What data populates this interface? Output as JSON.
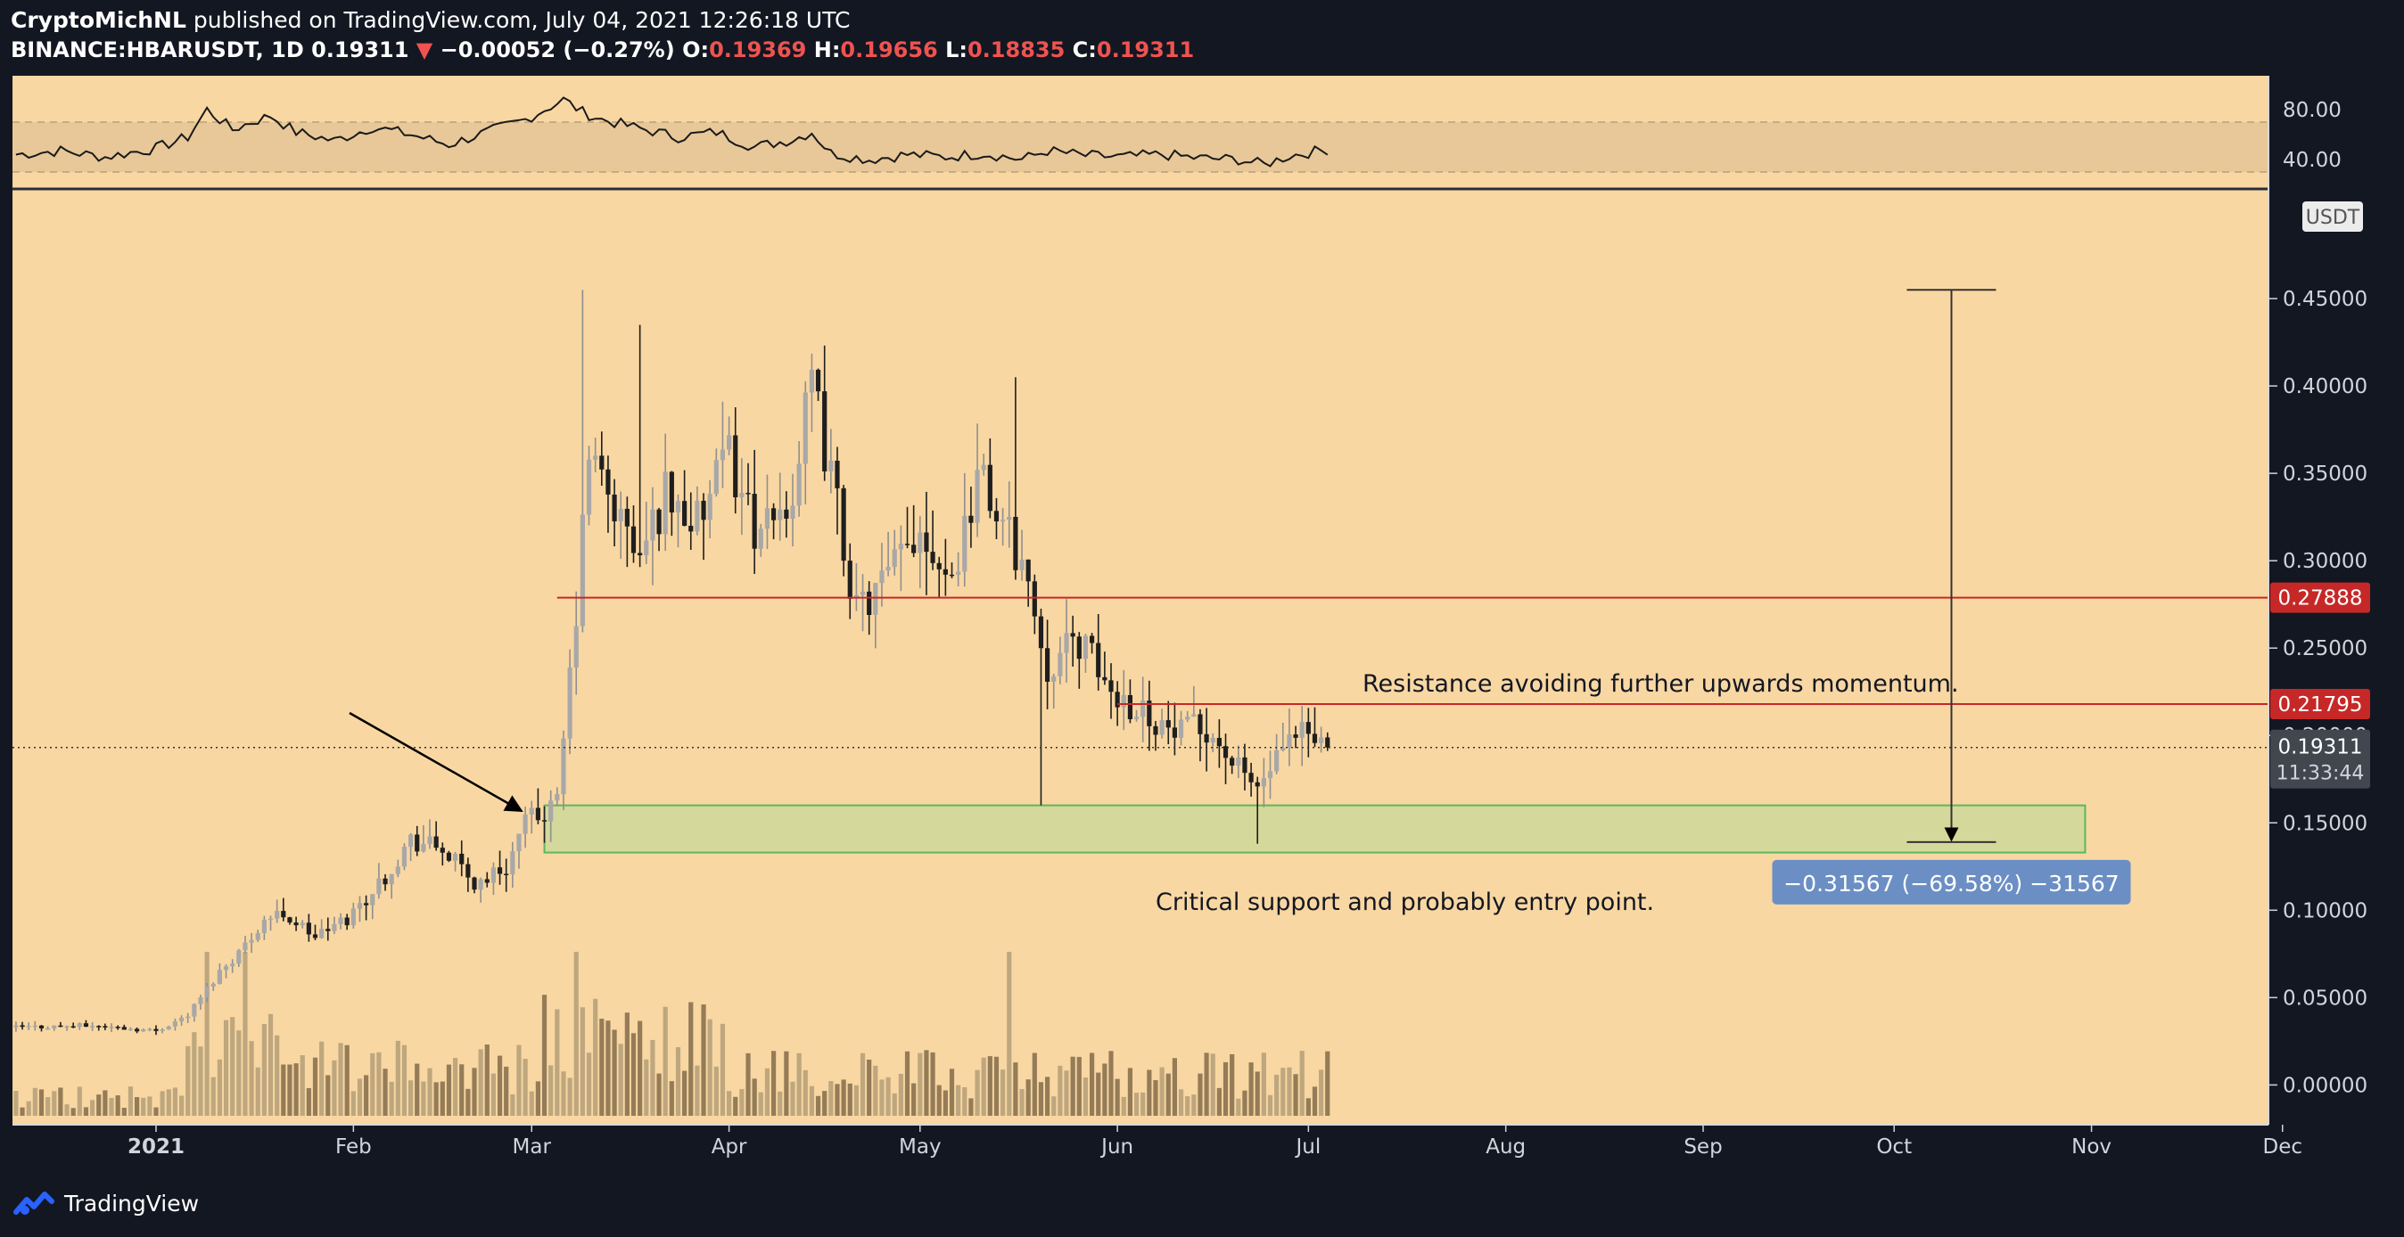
{
  "header": {
    "author": "CryptoMichNL",
    "published": "published on TradingView.com, July 04, 2021 12:26:18 UTC",
    "symbol": "BINANCE:HBARUSDT, 1D",
    "last": "0.19311",
    "change_arrow": "▼",
    "change": "−0.00052 (−0.27%)",
    "o_label": "O:",
    "o_value": "0.19369",
    "h_label": "H:",
    "h_value": "0.19656",
    "l_label": "L:",
    "l_value": "0.18835",
    "c_label": "C:",
    "c_value": "0.19311"
  },
  "footer": {
    "brand": "TradingView",
    "logo_icon": "tradingview-logo-icon"
  },
  "colors": {
    "background": "#131722",
    "panel": "#f9d7a2",
    "up_candle": "#a8a8a8",
    "down_candle": "#1e1e1e",
    "resistance": "#c62828",
    "support_zone": "#d4d89a",
    "measure_box": "#6b8fc4",
    "price_label": "#42464f"
  },
  "chart_data": {
    "type": "candlestick",
    "symbol": "BINANCE:HBARUSDT",
    "timeframe": "1D",
    "currency_label": "USDT",
    "ylim": [
      -0.01,
      0.5
    ],
    "y_ticks": [
      "0.45000",
      "0.40000",
      "0.35000",
      "0.30000",
      "0.25000",
      "0.20000",
      "0.15000",
      "0.10000",
      "0.05000",
      "0.00000"
    ],
    "y_tick_values": [
      0.45,
      0.4,
      0.35,
      0.3,
      0.25,
      0.2,
      0.15,
      0.1,
      0.05,
      0.0
    ],
    "x_ticks": [
      "2021",
      "Feb",
      "Mar",
      "Apr",
      "May",
      "Jun",
      "Jul",
      "Aug",
      "Sep",
      "Oct",
      "Nov",
      "Dec"
    ],
    "x_tick_days": [
      0,
      31,
      59,
      90,
      120,
      151,
      181,
      212,
      243,
      273,
      304,
      334
    ],
    "price_checkpoints": {
      "days": [
        -22,
        -10,
        0,
        5,
        10,
        14,
        17,
        20,
        25,
        30,
        35,
        40,
        45,
        50,
        55,
        58,
        63,
        66,
        68,
        72,
        76,
        80,
        85,
        90,
        95,
        100,
        103,
        107,
        110,
        115,
        120,
        125,
        129,
        133,
        136,
        140,
        145,
        150,
        155,
        160,
        165,
        170,
        173,
        176,
        180,
        184
      ],
      "close": [
        0.033,
        0.034,
        0.031,
        0.04,
        0.065,
        0.08,
        0.095,
        0.098,
        0.085,
        0.095,
        0.115,
        0.14,
        0.135,
        0.115,
        0.125,
        0.15,
        0.16,
        0.27,
        0.36,
        0.33,
        0.3,
        0.34,
        0.32,
        0.36,
        0.31,
        0.34,
        0.4,
        0.33,
        0.27,
        0.29,
        0.32,
        0.29,
        0.35,
        0.32,
        0.3,
        0.24,
        0.255,
        0.225,
        0.215,
        0.2,
        0.205,
        0.18,
        0.17,
        0.185,
        0.2,
        0.193
      ]
    },
    "last_price": 0.19311,
    "last_price_label": "0.19311",
    "countdown": "11:33:44",
    "resistance_levels": [
      {
        "value": 0.27888,
        "label": "0.27888",
        "from_day": 63
      },
      {
        "value": 0.21795,
        "label": "0.21795",
        "from_day": 151
      }
    ],
    "support_zone": {
      "low": 0.133,
      "high": 0.16,
      "from_day": 61,
      "to_day": 303
    },
    "measure": {
      "from": 0.455,
      "to": 0.139,
      "day": 282,
      "label": "−0.31567 (−69.58%) −31567"
    },
    "annotations": [
      {
        "text": "Resistance avoiding further upwards momentum."
      },
      {
        "text": "Critical support and probably entry point."
      }
    ],
    "rsi": {
      "ticks": [
        "80.00",
        "40.00"
      ],
      "tick_values": [
        80,
        40
      ],
      "band": [
        30,
        70
      ],
      "ylim": [
        20,
        100
      ],
      "days": [
        -22,
        -15,
        -8,
        0,
        5,
        8,
        12,
        15,
        18,
        22,
        28,
        34,
        40,
        46,
        52,
        58,
        61,
        64,
        67,
        70,
        75,
        82,
        88,
        94,
        100,
        103,
        106,
        112,
        118,
        124,
        130,
        136,
        140,
        146,
        152,
        158,
        164,
        170,
        174,
        178,
        184
      ],
      "values": [
        44,
        47,
        42,
        49,
        58,
        80,
        64,
        70,
        75,
        62,
        55,
        66,
        60,
        52,
        62,
        72,
        80,
        88,
        78,
        72,
        66,
        58,
        62,
        50,
        56,
        62,
        45,
        40,
        44,
        42,
        45,
        40,
        47,
        43,
        42,
        44,
        41,
        40,
        36,
        43,
        48
      ]
    },
    "volume": {
      "ylim_max": 100
    }
  }
}
